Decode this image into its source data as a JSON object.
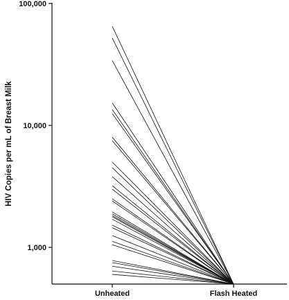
{
  "chart_data": {
    "type": "line",
    "ylabel": "HIV Copies per mL of Breast Milk",
    "xlabel": "",
    "yscale": "log",
    "ylim": [
      500,
      100000
    ],
    "categories": [
      "Unheated",
      "Flash Heated"
    ],
    "yticks": [
      {
        "value": 1000,
        "label": "1,000"
      },
      {
        "value": 10000,
        "label": "10,000"
      },
      {
        "value": 100000,
        "label": "100,000"
      }
    ],
    "grid": false,
    "legend": "none",
    "line_color": "#111111",
    "series": [
      {
        "values": [
          65000,
          500
        ]
      },
      {
        "values": [
          52000,
          500
        ]
      },
      {
        "values": [
          34000,
          500
        ]
      },
      {
        "values": [
          15300,
          500
        ]
      },
      {
        "values": [
          13500,
          500
        ]
      },
      {
        "values": [
          12500,
          500
        ]
      },
      {
        "values": [
          8000,
          500
        ]
      },
      {
        "values": [
          7500,
          500
        ]
      },
      {
        "values": [
          5000,
          500
        ]
      },
      {
        "values": [
          4500,
          500
        ]
      },
      {
        "values": [
          3800,
          500
        ]
      },
      {
        "values": [
          3200,
          500
        ]
      },
      {
        "values": [
          3000,
          500
        ]
      },
      {
        "values": [
          2500,
          500
        ]
      },
      {
        "values": [
          2400,
          500
        ]
      },
      {
        "values": [
          1950,
          500
        ]
      },
      {
        "values": [
          1880,
          500
        ]
      },
      {
        "values": [
          1820,
          500
        ]
      },
      {
        "values": [
          1780,
          500
        ]
      },
      {
        "values": [
          1700,
          500
        ]
      },
      {
        "values": [
          1520,
          500
        ]
      },
      {
        "values": [
          1450,
          500
        ]
      },
      {
        "values": [
          1250,
          500
        ]
      },
      {
        "values": [
          1120,
          500
        ]
      },
      {
        "values": [
          1050,
          500
        ]
      },
      {
        "values": [
          780,
          500
        ]
      },
      {
        "values": [
          750,
          500
        ]
      },
      {
        "values": [
          700,
          500
        ]
      },
      {
        "values": [
          640,
          500
        ]
      },
      {
        "values": [
          600,
          500
        ]
      }
    ]
  }
}
